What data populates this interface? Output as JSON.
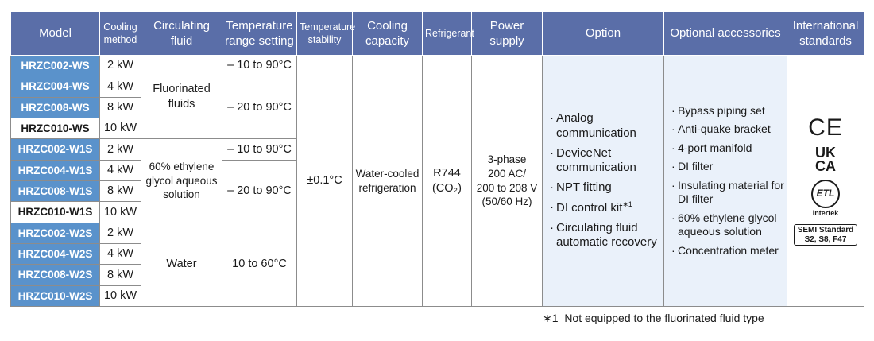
{
  "headers": {
    "model": "Model",
    "cooling_method": "Cooling method",
    "circulating_fluid": "Circulating fluid",
    "temperature_range": "Temperature range setting",
    "temperature_stability": "Temperature stability",
    "cooling_capacity": "Cooling capacity",
    "refrigerant": "Refrigerant",
    "power_supply": "Power supply",
    "option": "Option",
    "optional_accessories": "Optional accessories",
    "international_standards": "International standards"
  },
  "rows": [
    {
      "model": "HRZC002-WS",
      "method": "2 kW"
    },
    {
      "model": "HRZC004-WS",
      "method": "4 kW"
    },
    {
      "model": "HRZC008-WS",
      "method": "8 kW"
    },
    {
      "model": "HRZC010-WS",
      "method": "10 kW"
    },
    {
      "model": "HRZC002-W1S",
      "method": "2 kW"
    },
    {
      "model": "HRZC004-W1S",
      "method": "4 kW"
    },
    {
      "model": "HRZC008-W1S",
      "method": "8 kW"
    },
    {
      "model": "HRZC010-W1S",
      "method": "10 kW"
    },
    {
      "model": "HRZC002-W2S",
      "method": "2 kW"
    },
    {
      "model": "HRZC004-W2S",
      "method": "4 kW"
    },
    {
      "model": "HRZC008-W2S",
      "method": "8 kW"
    },
    {
      "model": "HRZC010-W2S",
      "method": "10 kW"
    }
  ],
  "fluids": {
    "fluorinated": "Fluorinated fluids",
    "ethylene": "60% ethylene glycol aqueous solution",
    "water": "Water"
  },
  "ranges": {
    "r1": "– 10 to 90°C",
    "r2": "– 20 to 90°C",
    "r3": "– 10 to 90°C",
    "r4": "– 20 to 90°C",
    "r5": "10 to 60°C"
  },
  "stability": "±0.1°C",
  "cooling_capacity": "Water-cooled refrigeration",
  "refrigerant": {
    "line1": "R744",
    "line2": "(CO₂)"
  },
  "power_supply": {
    "line1": "3-phase",
    "line2": "200 AC/",
    "line3": "200 to 208 V",
    "line4": "(50/60 Hz)"
  },
  "options": [
    "Analog communication",
    "DeviceNet communication",
    "NPT fitting",
    "DI control kit",
    "Circulating fluid automatic recovery"
  ],
  "option_footnote_mark": "∗1",
  "accessories": [
    "Bypass piping set",
    "Anti-quake bracket",
    "4-port manifold",
    "DI filter",
    "Insulating material for DI filter",
    "60% ethylene glycol aqueous solution",
    "Concentration meter"
  ],
  "standards": {
    "ce": "CE",
    "ukca_top": "UK",
    "ukca_bottom": "CA",
    "etl": "ETL",
    "etl_label": "Intertek",
    "semi_line1": "SEMI Standard",
    "semi_line2": "S2, S8, F47"
  },
  "footnote": {
    "mark": "∗1",
    "text": "Not equipped to the fluorinated fluid type"
  },
  "colors": {
    "header_bg": "#5a6ea8",
    "model_bg": "#5a92cb",
    "option_bg": "#eaf1fa"
  }
}
